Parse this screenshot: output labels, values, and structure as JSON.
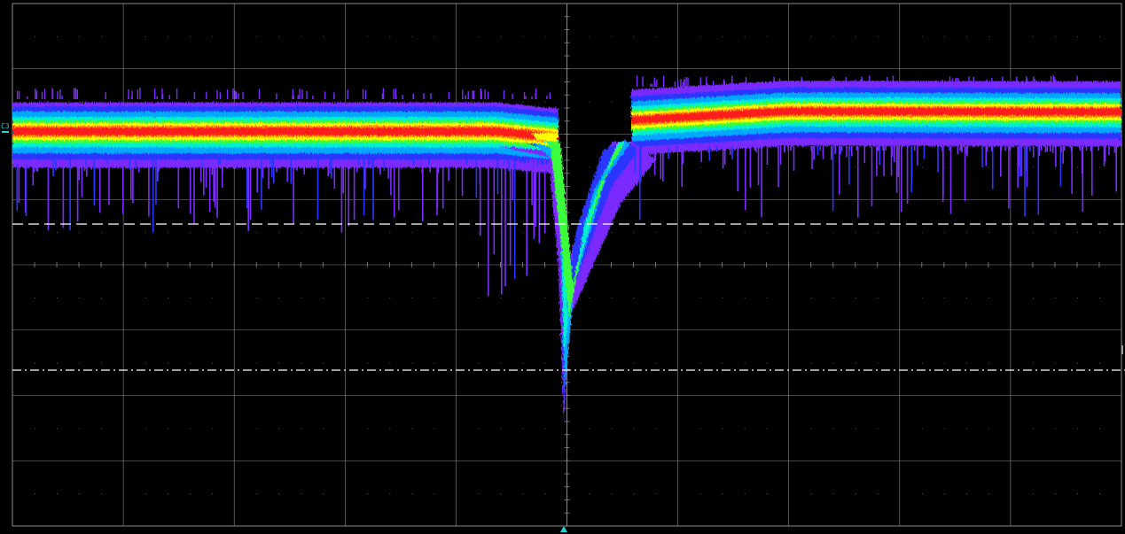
{
  "scope": {
    "background": "#000000",
    "grid_color": "#8a8a8a",
    "divisions": {
      "horizontal": 10,
      "vertical": 8
    },
    "channel": {
      "label": "C3",
      "color": "#22d3d3"
    },
    "trigger_marker_color": "#22d3d3",
    "cursor_lines": [
      {
        "style": "dashed",
        "color": "#ffffff"
      },
      {
        "style": "dash-dot",
        "color": "#ffffff"
      }
    ],
    "persistence_palette": [
      "#7a2cff",
      "#2a36ff",
      "#00a8ff",
      "#00f0d0",
      "#3aff3a",
      "#ffff00",
      "#ff8c00",
      "#ff1a1a"
    ]
  }
}
